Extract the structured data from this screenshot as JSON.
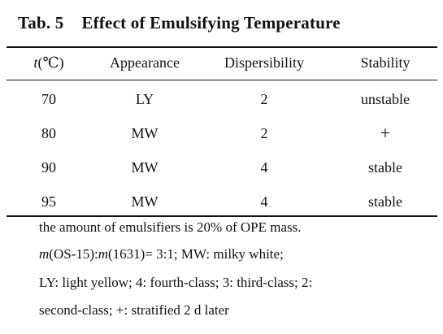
{
  "table": {
    "title_number": "Tab. 5",
    "title_text": "Effect of Emulsifying Temperature",
    "headers": {
      "t_var": "t",
      "t_unit": "(℃)",
      "appearance": "Appearance",
      "dispersibility": "Dispersibility",
      "stability": "Stability"
    },
    "rows": [
      {
        "t": "70",
        "appearance": "LY",
        "dispersibility": "2",
        "stability": "unstable"
      },
      {
        "t": "80",
        "appearance": "MW",
        "dispersibility": "2",
        "stability": "+"
      },
      {
        "t": "90",
        "appearance": "MW",
        "dispersibility": "4",
        "stability": "stable"
      },
      {
        "t": "95",
        "appearance": "MW",
        "dispersibility": "4",
        "stability": "stable"
      }
    ]
  },
  "notes": {
    "line1": "the amount of emulsifiers is 20% of OPE mass.",
    "line2_m1": "m",
    "line2_a": "(OS-15):",
    "line2_m2": "m",
    "line2_b": "(1631)= 3:1; MW: milky white;",
    "line3": "LY: light yellow; 4: fourth-class; 3: third-class; 2:",
    "line4": "second-class; +: stratified 2 d later"
  }
}
